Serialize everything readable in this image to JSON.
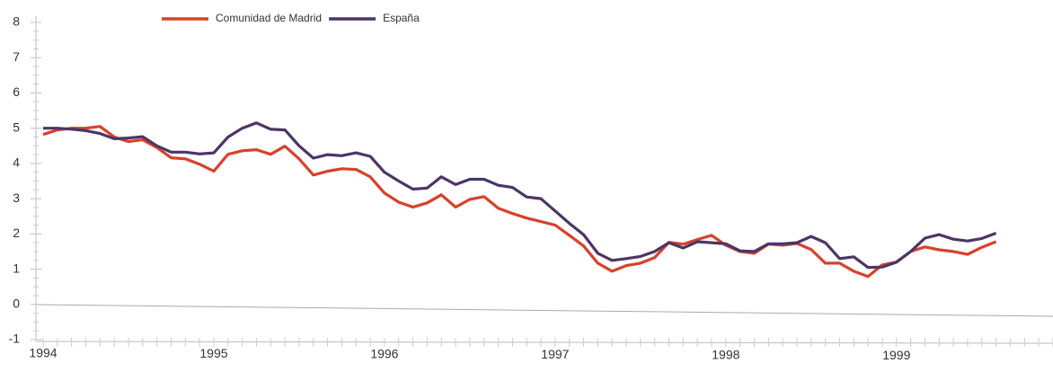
{
  "chart_data": {
    "type": "line",
    "categories": [
      "1994",
      null,
      null,
      null,
      null,
      null,
      null,
      null,
      null,
      null,
      null,
      null,
      "1995",
      null,
      null,
      null,
      null,
      null,
      null,
      null,
      null,
      null,
      null,
      null,
      "1996",
      null,
      null,
      null,
      null,
      null,
      null,
      null,
      null,
      null,
      null,
      null,
      "1997",
      null,
      null,
      null,
      null,
      null,
      null,
      null,
      null,
      null,
      null,
      null,
      "1998",
      null,
      null,
      null,
      null,
      null,
      null,
      null,
      null,
      null,
      null,
      null,
      "1999",
      null,
      null,
      null,
      null,
      null,
      null,
      null
    ],
    "series": [
      {
        "name": "Comunidad de Madrid",
        "color": "#d9402b",
        "values": [
          4.82,
          4.95,
          5.0,
          5.0,
          5.05,
          4.75,
          4.62,
          4.67,
          4.45,
          4.16,
          4.13,
          3.98,
          3.78,
          4.26,
          4.36,
          4.39,
          4.26,
          4.49,
          4.13,
          3.67,
          3.78,
          3.85,
          3.83,
          3.62,
          3.16,
          2.9,
          2.76,
          2.88,
          3.11,
          2.76,
          2.98,
          3.06,
          2.73,
          2.58,
          2.45,
          2.35,
          2.25,
          1.96,
          1.66,
          1.17,
          0.94,
          1.1,
          1.17,
          1.33,
          1.76,
          1.71,
          1.84,
          1.96,
          1.68,
          1.5,
          1.45,
          1.71,
          1.68,
          1.73,
          1.56,
          1.17,
          1.17,
          0.94,
          0.79,
          1.12,
          1.2,
          1.5,
          1.63,
          1.55,
          1.5,
          1.42,
          1.62,
          1.78
        ]
      },
      {
        "name": "España",
        "color": "#4b3566",
        "values": [
          5.0,
          5.0,
          4.97,
          4.93,
          4.85,
          4.7,
          4.72,
          4.76,
          4.5,
          4.32,
          4.32,
          4.27,
          4.3,
          4.75,
          5.0,
          5.15,
          4.97,
          4.95,
          4.5,
          4.15,
          4.25,
          4.22,
          4.3,
          4.2,
          3.75,
          3.5,
          3.27,
          3.3,
          3.62,
          3.4,
          3.55,
          3.55,
          3.38,
          3.32,
          3.05,
          3.0,
          2.65,
          2.3,
          1.98,
          1.45,
          1.25,
          1.3,
          1.36,
          1.5,
          1.75,
          1.6,
          1.78,
          1.75,
          1.72,
          1.52,
          1.5,
          1.72,
          1.72,
          1.75,
          1.93,
          1.75,
          1.3,
          1.35,
          1.05,
          1.06,
          1.2,
          1.5,
          1.88,
          1.98,
          1.85,
          1.8,
          1.87,
          2.02
        ]
      }
    ],
    "ylim": [
      -1,
      8
    ],
    "yticks": [
      -1,
      0,
      1,
      2,
      3,
      4,
      5,
      6,
      7,
      8
    ],
    "grid": false,
    "legend": "top"
  }
}
